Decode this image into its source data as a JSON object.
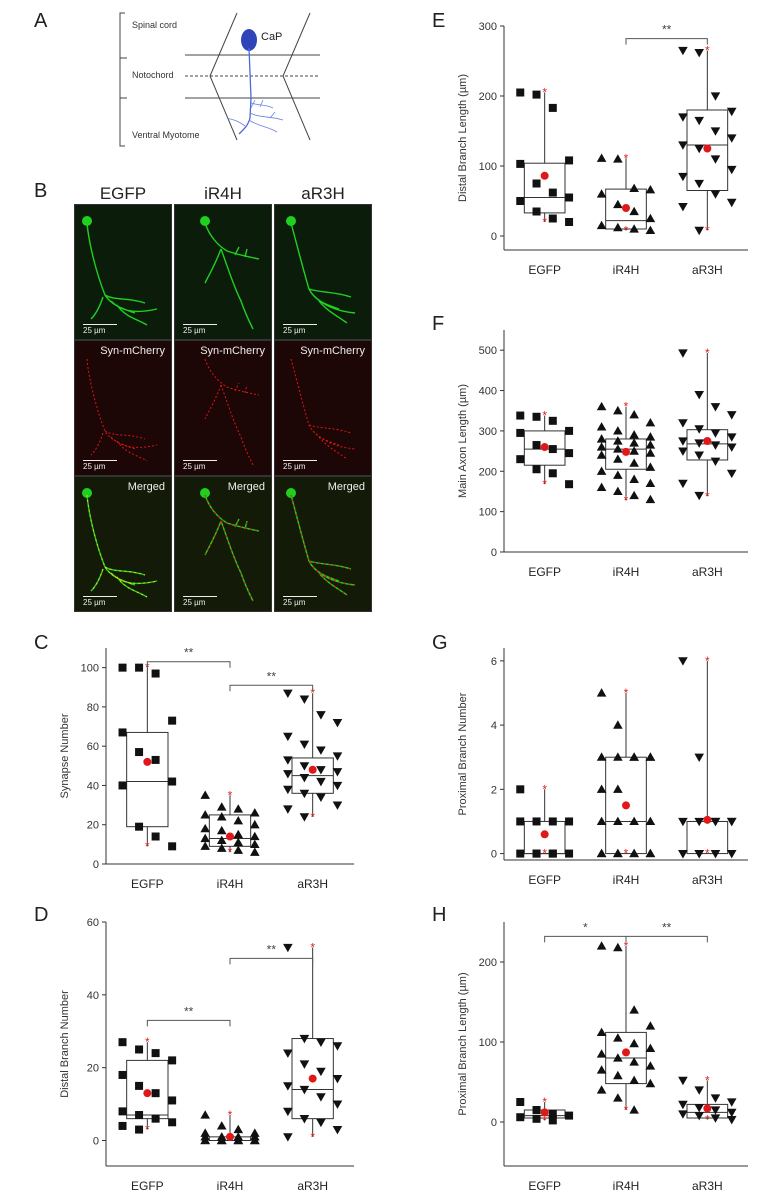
{
  "panels": {
    "A": "A",
    "B": "B",
    "C": "C",
    "D": "D",
    "E": "E",
    "F": "F",
    "G": "G",
    "H": "H"
  },
  "diagramA": {
    "spinal_cord": "Spinal cord",
    "notochord": "Notochord",
    "ventral_myotome": "Ventral Myotome",
    "neuron": "CaP"
  },
  "micrographs": {
    "columns": [
      "EGFP",
      "iR4H",
      "aR3H"
    ],
    "row_labels": [
      "",
      "Syn-mCherry",
      "Merged"
    ],
    "scale_bar": "25 µm",
    "colors": {
      "green": "#1fd11f",
      "red": "#e01515",
      "yellow": "#e6d41a",
      "bg_green": "#0b1c0b",
      "bg_red": "#1c0606",
      "bg_merged": "#141a08"
    }
  },
  "chart_data": [
    {
      "id": "C",
      "type": "box",
      "ylabel": "Synapse Number",
      "categories": [
        "EGFP",
        "iR4H",
        "aR3H"
      ],
      "ylim": [
        0,
        110
      ],
      "yticks": [
        0,
        20,
        40,
        60,
        80,
        100
      ],
      "markers": [
        "square",
        "triangle-up",
        "triangle-down"
      ],
      "boxes": [
        {
          "min": 9,
          "q1": 19,
          "median": 42,
          "q3": 67,
          "max": 100,
          "mean": 52,
          "points": [
            100,
            97,
            100,
            73,
            67,
            57,
            53,
            42,
            40,
            19,
            14,
            9
          ]
        },
        {
          "min": 6,
          "q1": 9,
          "median": 13,
          "q3": 25,
          "max": 35,
          "mean": 14,
          "points": [
            35,
            29,
            28,
            26,
            25,
            24,
            22,
            20,
            18,
            17,
            15,
            14,
            13,
            12,
            11,
            10,
            9,
            8,
            7,
            6
          ]
        },
        {
          "min": 24,
          "q1": 36,
          "median": 45,
          "q3": 54,
          "max": 87,
          "mean": 48,
          "points": [
            87,
            84,
            76,
            72,
            65,
            61,
            58,
            55,
            53,
            50,
            48,
            47,
            46,
            44,
            42,
            40,
            38,
            36,
            34,
            30,
            28,
            24
          ]
        }
      ],
      "significance": [
        {
          "from": 0,
          "to": 1,
          "label": "**",
          "y": 103
        },
        {
          "from": 1,
          "to": 2,
          "label": "**",
          "y": 91
        }
      ]
    },
    {
      "id": "D",
      "type": "box",
      "ylabel": "Distal Branch Number",
      "categories": [
        "EGFP",
        "iR4H",
        "aR3H"
      ],
      "ylim": [
        -7,
        60
      ],
      "yticks": [
        0,
        20,
        40,
        60
      ],
      "markers": [
        "square",
        "triangle-up",
        "triangle-down"
      ],
      "boxes": [
        {
          "min": 3,
          "q1": 6,
          "median": 7,
          "q3": 22,
          "max": 27,
          "mean": 13,
          "points": [
            27,
            25,
            24,
            22,
            18,
            15,
            13,
            11,
            8,
            7,
            6,
            5,
            4,
            3
          ]
        },
        {
          "min": 0,
          "q1": 0,
          "median": 0,
          "q3": 1,
          "max": 7,
          "mean": 1,
          "points": [
            7,
            4,
            3,
            2,
            2,
            1,
            1,
            1,
            1,
            0,
            0,
            0,
            0,
            0,
            0,
            0,
            0,
            0,
            0,
            0
          ]
        },
        {
          "min": 1,
          "q1": 6,
          "median": 14,
          "q3": 28,
          "max": 53,
          "mean": 17,
          "points": [
            53,
            28,
            27,
            26,
            24,
            21,
            19,
            17,
            15,
            14,
            12,
            10,
            8,
            6,
            5,
            3,
            1
          ]
        }
      ],
      "significance": [
        {
          "from": 0,
          "to": 1,
          "label": "**",
          "y": 33
        },
        {
          "from": 1,
          "to": 2,
          "label": "**",
          "y": 50
        }
      ]
    },
    {
      "id": "E",
      "type": "box",
      "ylabel": "Distal Branch Length (µm)",
      "categories": [
        "EGFP",
        "iR4H",
        "aR3H"
      ],
      "ylim": [
        -20,
        300
      ],
      "yticks": [
        0,
        100,
        200,
        300
      ],
      "markers": [
        "square",
        "triangle-up",
        "triangle-down"
      ],
      "boxes": [
        {
          "min": 20,
          "q1": 33,
          "median": 55,
          "q3": 104,
          "max": 205,
          "mean": 86,
          "points": [
            205,
            202,
            183,
            108,
            103,
            75,
            62,
            55,
            50,
            35,
            25,
            20
          ]
        },
        {
          "min": 8,
          "q1": 10,
          "median": 22,
          "q3": 67,
          "max": 111,
          "mean": 40,
          "points": [
            111,
            110,
            68,
            66,
            60,
            45,
            35,
            25,
            15,
            12,
            10,
            8
          ]
        },
        {
          "min": 8,
          "q1": 65,
          "median": 130,
          "q3": 180,
          "max": 265,
          "mean": 125,
          "points": [
            265,
            262,
            200,
            178,
            170,
            165,
            150,
            140,
            130,
            125,
            110,
            95,
            85,
            75,
            60,
            48,
            42,
            8
          ]
        }
      ],
      "significance": [
        {
          "from": 1,
          "to": 2,
          "label": "**",
          "y": 282
        }
      ]
    },
    {
      "id": "F",
      "type": "box",
      "ylabel": "Main Axon Length (µm)",
      "categories": [
        "EGFP",
        "iR4H",
        "aR3H"
      ],
      "ylim": [
        0,
        550
      ],
      "yticks": [
        0,
        100,
        200,
        300,
        400,
        500
      ],
      "markers": [
        "square",
        "triangle-up",
        "triangle-down"
      ],
      "boxes": [
        {
          "min": 168,
          "q1": 215,
          "median": 255,
          "q3": 300,
          "max": 338,
          "mean": 260,
          "points": [
            338,
            335,
            325,
            300,
            295,
            265,
            255,
            245,
            230,
            205,
            195,
            168
          ]
        },
        {
          "min": 128,
          "q1": 205,
          "median": 255,
          "q3": 280,
          "max": 360,
          "mean": 248,
          "points": [
            360,
            350,
            340,
            320,
            310,
            300,
            290,
            285,
            280,
            275,
            270,
            265,
            260,
            255,
            250,
            245,
            240,
            230,
            220,
            210,
            200,
            190,
            180,
            170,
            160,
            150,
            140,
            130
          ]
        },
        {
          "min": 138,
          "q1": 228,
          "median": 268,
          "q3": 303,
          "max": 493,
          "mean": 275,
          "points": [
            493,
            390,
            360,
            340,
            320,
            305,
            295,
            285,
            275,
            270,
            265,
            260,
            250,
            240,
            225,
            195,
            170,
            140
          ]
        }
      ],
      "significance": []
    },
    {
      "id": "G",
      "type": "box",
      "ylabel": "Proximal Branch Number",
      "categories": [
        "EGFP",
        "iR4H",
        "aR3H"
      ],
      "ylim": [
        -0.2,
        6.4
      ],
      "yticks": [
        0,
        2,
        4,
        6
      ],
      "markers": [
        "square",
        "triangle-up",
        "triangle-down"
      ],
      "boxes": [
        {
          "min": 0,
          "q1": 0,
          "median": 0,
          "q3": 1,
          "max": 2,
          "mean": 0.6,
          "points": [
            2,
            1,
            1,
            1,
            1,
            0,
            0,
            0,
            0,
            0,
            0
          ]
        },
        {
          "min": 0,
          "q1": 0,
          "median": 1,
          "q3": 3,
          "max": 5,
          "mean": 1.5,
          "points": [
            5,
            4,
            3,
            3,
            3,
            3,
            3,
            3,
            2,
            2,
            1,
            1,
            1,
            1,
            0,
            0,
            0,
            0,
            0,
            0,
            0,
            0
          ]
        },
        {
          "min": 0,
          "q1": 0,
          "median": 1,
          "q3": 1,
          "max": 6,
          "mean": 1.05,
          "points": [
            6,
            3,
            1,
            1,
            1,
            1,
            1,
            1,
            0,
            0,
            0,
            0,
            0,
            0
          ]
        }
      ],
      "significance": []
    },
    {
      "id": "H",
      "type": "box",
      "ylabel": "Proximal Branch Length (µm)",
      "categories": [
        "EGFP",
        "iR4H",
        "aR3H"
      ],
      "ylim": [
        -55,
        250
      ],
      "yticks": [
        0,
        100,
        200
      ],
      "markers": [
        "square",
        "triangle-up",
        "triangle-down"
      ],
      "boxes": [
        {
          "min": 2,
          "q1": 5,
          "median": 8,
          "q3": 15,
          "max": 25,
          "mean": 12,
          "points": [
            25,
            15,
            10,
            8,
            6,
            4,
            2
          ]
        },
        {
          "min": 15,
          "q1": 48,
          "median": 80,
          "q3": 112,
          "max": 220,
          "mean": 87,
          "points": [
            220,
            218,
            140,
            120,
            112,
            105,
            98,
            92,
            85,
            80,
            75,
            70,
            65,
            58,
            52,
            48,
            40,
            30,
            15
          ]
        },
        {
          "min": 3,
          "q1": 5,
          "median": 12,
          "q3": 22,
          "max": 52,
          "mean": 17,
          "points": [
            52,
            40,
            30,
            25,
            22,
            18,
            15,
            12,
            10,
            8,
            5,
            3
          ]
        }
      ],
      "significance": [
        {
          "from": 0,
          "to": 1,
          "label": "*",
          "y": 232
        },
        {
          "from": 1,
          "to": 2,
          "label": "**",
          "y": 232
        }
      ]
    }
  ]
}
